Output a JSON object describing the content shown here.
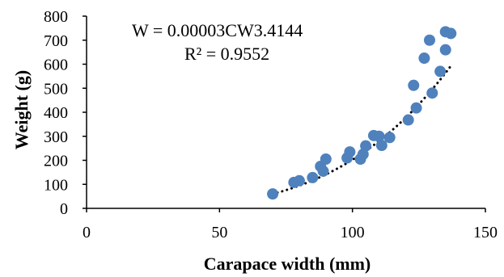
{
  "chart_data": {
    "type": "scatter",
    "title": "",
    "xlabel": "Carapace width (mm)",
    "ylabel": "Weight (g)",
    "xlim": [
      0,
      150
    ],
    "ylim": [
      0,
      800
    ],
    "xticks": [
      "0",
      "50",
      "100",
      "150"
    ],
    "yticks": [
      "0",
      "100",
      "200",
      "300",
      "400",
      "500",
      "600",
      "700",
      "800"
    ],
    "grid": false,
    "legend": "none",
    "point_color": "#4f81bd",
    "trendline": {
      "type": "power",
      "style": "dotted",
      "color": "#000000",
      "a": 3e-05,
      "b": 3.4144,
      "x_range": [
        70,
        137
      ]
    },
    "annotations": {
      "equation": "W = 0.00003CW3.4144",
      "r_squared": "R² = 0.9552"
    },
    "points": [
      {
        "x": 70,
        "y": 60
      },
      {
        "x": 78,
        "y": 108
      },
      {
        "x": 80,
        "y": 115
      },
      {
        "x": 85,
        "y": 128
      },
      {
        "x": 88,
        "y": 175
      },
      {
        "x": 89,
        "y": 155
      },
      {
        "x": 90,
        "y": 205
      },
      {
        "x": 98,
        "y": 210
      },
      {
        "x": 99,
        "y": 235
      },
      {
        "x": 103,
        "y": 205
      },
      {
        "x": 104,
        "y": 225
      },
      {
        "x": 105,
        "y": 260
      },
      {
        "x": 108,
        "y": 303
      },
      {
        "x": 110,
        "y": 300
      },
      {
        "x": 111,
        "y": 262
      },
      {
        "x": 114,
        "y": 295
      },
      {
        "x": 121,
        "y": 368
      },
      {
        "x": 123,
        "y": 512
      },
      {
        "x": 124,
        "y": 418
      },
      {
        "x": 127,
        "y": 625
      },
      {
        "x": 129,
        "y": 700
      },
      {
        "x": 130,
        "y": 480
      },
      {
        "x": 133,
        "y": 570
      },
      {
        "x": 135,
        "y": 660
      },
      {
        "x": 135,
        "y": 735
      },
      {
        "x": 137,
        "y": 728
      }
    ]
  }
}
